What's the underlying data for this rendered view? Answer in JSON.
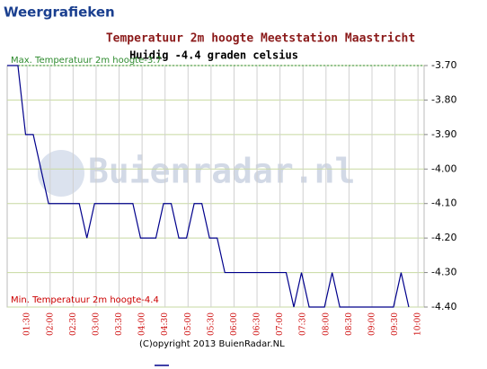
{
  "header": {
    "title": "Weergrafieken"
  },
  "chart_data": {
    "type": "line",
    "title": "Temperatuur 2m hoogte Meetstation Maastricht",
    "subtitle": "Huidig -4.4 graden celsius",
    "max_label": "Max. Temperatuur 2m hoogte-3.7",
    "min_label": "Min. Temperatuur 2m hoogte-4.4",
    "copyright": "(C)opyright 2013 BuienRadar.NL",
    "watermark": "Buienradar.nl",
    "x": [
      64,
      78,
      88,
      98,
      118,
      158,
      168,
      178,
      228,
      238,
      258,
      268,
      278,
      288,
      298,
      308,
      318,
      328,
      338,
      348,
      428,
      438,
      448,
      458,
      478,
      488,
      498,
      568,
      578,
      588
    ],
    "series": [
      {
        "color": "#00008b",
        "values": [
          -3.7,
          -3.7,
          -3.9,
          -3.9,
          -4.1,
          -4.1,
          -4.2,
          -4.1,
          -4.1,
          -4.2,
          -4.2,
          -4.1,
          -4.1,
          -4.2,
          -4.2,
          -4.1,
          -4.1,
          -4.2,
          -4.2,
          -4.3,
          -4.3,
          -4.4,
          -4.3,
          -4.4,
          -4.4,
          -4.3,
          -4.4,
          -4.4,
          -4.3,
          -4.4
        ]
      }
    ],
    "xlim": [
      64,
      608
    ],
    "ylim": [
      -4.4,
      -3.7
    ],
    "xticks": [
      {
        "value": 90,
        "label": "01:30"
      },
      {
        "value": 120,
        "label": "02:00"
      },
      {
        "value": 150,
        "label": "02:30"
      },
      {
        "value": 180,
        "label": "03:00"
      },
      {
        "value": 210,
        "label": "03:30"
      },
      {
        "value": 240,
        "label": "04:00"
      },
      {
        "value": 270,
        "label": "04:30"
      },
      {
        "value": 300,
        "label": "05:00"
      },
      {
        "value": 330,
        "label": "05:30"
      },
      {
        "value": 360,
        "label": "06:00"
      },
      {
        "value": 390,
        "label": "06:30"
      },
      {
        "value": 420,
        "label": "07:00"
      },
      {
        "value": 450,
        "label": "07:30"
      },
      {
        "value": 480,
        "label": "08:00"
      },
      {
        "value": 510,
        "label": "08:30"
      },
      {
        "value": 540,
        "label": "09:00"
      },
      {
        "value": 570,
        "label": "09:30"
      },
      {
        "value": 600,
        "label": "10:00"
      }
    ],
    "yticks": [
      {
        "value": -3.7,
        "label": "-3.70"
      },
      {
        "value": -3.8,
        "label": "-3.80"
      },
      {
        "value": -3.9,
        "label": "-3.90"
      },
      {
        "value": -4.0,
        "label": "-4.00"
      },
      {
        "value": -4.1,
        "label": "-4.10"
      },
      {
        "value": -4.2,
        "label": "-4.20"
      },
      {
        "value": -4.3,
        "label": "-4.30"
      },
      {
        "value": -4.4,
        "label": "-4.40"
      }
    ],
    "grid": true
  }
}
